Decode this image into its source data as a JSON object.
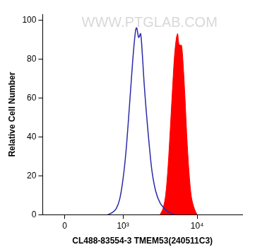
{
  "chart_data": {
    "type": "histogram",
    "x_label": "CL488-83554-3 TMEM53(240511C3)",
    "y_label": "Relative Cell Number",
    "annotations": [
      "WWW.PTGLAB.COM"
    ],
    "xlim": [
      -250,
      40000
    ],
    "xticks": [
      0,
      {
        "value": 1000,
        "label": "10³"
      },
      {
        "value": 10000,
        "label": "10⁴"
      }
    ],
    "ylim": [
      0,
      103
    ],
    "yticks": [
      0,
      20,
      40,
      60,
      80,
      100
    ],
    "grid": false,
    "series": [
      {
        "type": "line",
        "color": "#2a2aa8",
        "x": [
          600,
          700,
          800,
          900,
          1000,
          1100,
          1200,
          1300,
          1400,
          1500,
          1550,
          1650,
          1750,
          1850,
          1950,
          2100,
          2300,
          2500,
          2800,
          3200,
          3700,
          4300,
          5000
        ],
        "values": [
          0,
          1,
          3,
          8,
          18,
          32,
          50,
          68,
          84,
          95,
          96,
          91,
          93,
          82,
          68,
          52,
          35,
          22,
          12,
          6,
          3,
          1,
          0
        ]
      },
      {
        "type": "area",
        "color": "#ff0000",
        "x": [
          3200,
          3500,
          3800,
          4100,
          4400,
          4700,
          5000,
          5300,
          5500,
          5700,
          5900,
          6200,
          6500,
          6900,
          7300,
          7800,
          8400,
          9200,
          10000
        ],
        "values": [
          0,
          3,
          10,
          25,
          45,
          65,
          82,
          91,
          93,
          88,
          87,
          87,
          78,
          60,
          40,
          22,
          9,
          3,
          0
        ]
      }
    ]
  }
}
